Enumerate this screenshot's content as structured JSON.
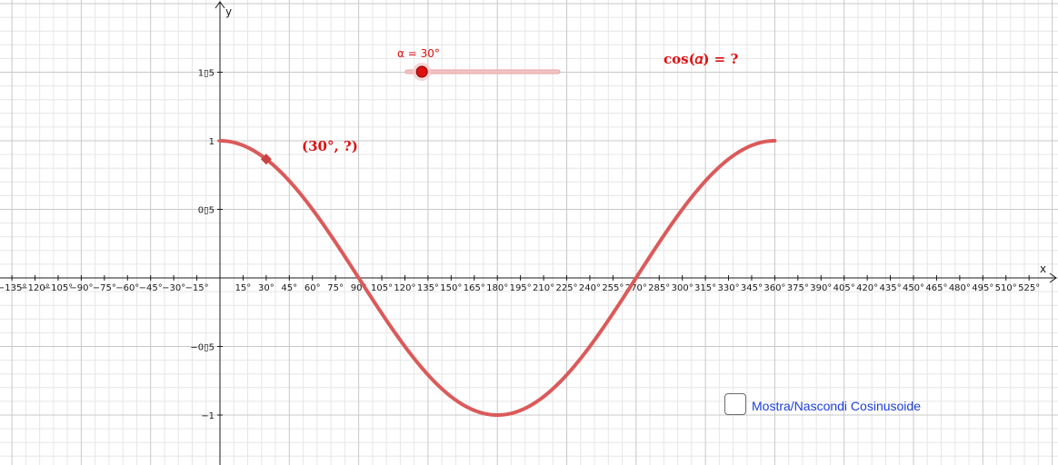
{
  "colors": {
    "curve": "#db5a5a",
    "accent": "#dd1111",
    "checkbox_text": "#1c3fd8",
    "grid_minor": "#e6e6e6",
    "grid_major": "#c8c8c8",
    "axis": "#1a1a1a"
  },
  "axes": {
    "x_name": "x",
    "y_name": "y"
  },
  "slider": {
    "label": "α = 30°",
    "value_deg": 30,
    "min_deg": 0,
    "max_deg": 360
  },
  "annotations": {
    "question": "cos(𝛼) = ?",
    "point": "(30°, ?)"
  },
  "checkbox": {
    "label": "Mostra/Nascondi Cosinusoide",
    "checked": false
  },
  "chart_data": {
    "type": "line",
    "title": "",
    "xlabel": "x",
    "ylabel": "y",
    "xlim": [
      -143,
      540
    ],
    "ylim": [
      -1.35,
      1.5
    ],
    "grid": true,
    "x_ticks": [
      "−135°",
      "−120°",
      "−105°",
      "−90°",
      "−75°",
      "−60°",
      "−45°",
      "−30°",
      "−15°",
      "15°",
      "30°",
      "45°",
      "60°",
      "75°",
      "90°",
      "105°",
      "120°",
      "135°",
      "150°",
      "165°",
      "180°",
      "195°",
      "210°",
      "225°",
      "240°",
      "255°",
      "270°",
      "285°",
      "300°",
      "315°",
      "330°",
      "345°",
      "360°",
      "375°",
      "390°",
      "405°",
      "420°",
      "435°",
      "450°",
      "465°",
      "480°",
      "495°",
      "510°",
      "525°"
    ],
    "y_ticks": [
      "1▯5",
      "1",
      "0▯5",
      "−0▯5",
      "−1"
    ],
    "series": [
      {
        "function": "cos",
        "x": [
          0,
          15,
          30,
          45,
          60,
          75,
          90,
          105,
          120,
          135,
          150,
          165,
          180,
          195,
          210,
          225,
          240,
          255,
          270,
          285,
          300,
          315,
          330,
          345,
          360
        ],
        "values": [
          1,
          0.966,
          0.866,
          0.707,
          0.5,
          0.259,
          0,
          -0.259,
          -0.5,
          -0.707,
          -0.866,
          -0.966,
          -1,
          -0.966,
          -0.866,
          -0.707,
          -0.5,
          -0.259,
          0,
          0.259,
          0.5,
          0.707,
          0.866,
          0.966,
          1
        ]
      }
    ],
    "marked_point": {
      "x": 30,
      "y": 0.866
    }
  }
}
